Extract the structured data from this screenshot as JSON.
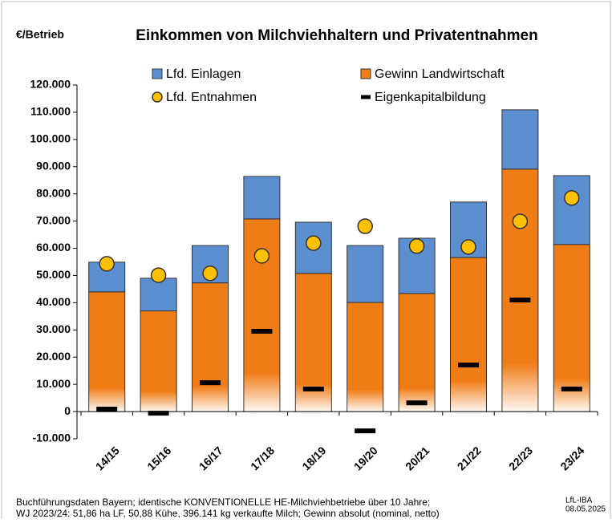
{
  "chart_data": {
    "type": "bar",
    "title": "Einkommen von Milchviehhaltern und Privatentnahmen",
    "y_label": "€/Betrieb",
    "categories": [
      "14/15",
      "15/16",
      "16/17",
      "17/18",
      "18/19",
      "19/20",
      "20/21",
      "21/22",
      "22/23",
      "23/24"
    ],
    "series": [
      {
        "name": "Lfd. Einlagen",
        "type": "bar",
        "color": "#5b8fd0",
        "values": [
          10900,
          12000,
          13700,
          15600,
          18800,
          20900,
          20300,
          20400,
          21800,
          25300
        ]
      },
      {
        "name": "Gewinn Landwirtschaft",
        "type": "bar",
        "color": "#f07c16",
        "values": [
          44000,
          37000,
          47300,
          70800,
          50800,
          40100,
          43400,
          56600,
          89100,
          61400
        ]
      },
      {
        "name": "Lfd. Entnahmen",
        "type": "dot",
        "color": "#ffc000",
        "values": [
          54300,
          50100,
          50800,
          57200,
          61900,
          68100,
          60800,
          60500,
          69900,
          78500
        ]
      },
      {
        "name": "Eigenkapitalbildung",
        "type": "dash",
        "color": "#000000",
        "values": [
          900,
          -600,
          10600,
          29500,
          8300,
          -7100,
          3200,
          17100,
          41000,
          8300
        ]
      }
    ],
    "ylim": [
      -10000,
      120000
    ],
    "yticks": [
      {
        "value": -10000,
        "label": "-10.000"
      },
      0,
      {
        "value": 10000,
        "label": "10.000"
      },
      {
        "value": 20000,
        "label": "20.000"
      },
      {
        "value": 30000,
        "label": "30.000"
      },
      {
        "value": 40000,
        "label": "40.000"
      },
      {
        "value": 50000,
        "label": "50.000"
      },
      {
        "value": 60000,
        "label": "60.000"
      },
      {
        "value": 70000,
        "label": "70.000"
      },
      {
        "value": 80000,
        "label": "80.000"
      },
      {
        "value": 90000,
        "label": "90.000"
      },
      {
        "value": 100000,
        "label": "100.000"
      },
      {
        "value": 110000,
        "label": "110.000"
      },
      {
        "value": 120000,
        "label": "120.000"
      }
    ],
    "grid": false,
    "legend": "top",
    "footnote": [
      "Buchführungsdaten Bayern; identische KONVENTIONELLE HE-Milchviehbetriebe über 10 Jahre;",
      "WJ 2023/24: 51,86 ha LF, 50,88 Kühe, 396.141 kg verkaufte Milch; Gewinn absolut (nominal, netto)"
    ],
    "source": [
      "LfL-IBA",
      "08.05.2025"
    ]
  }
}
